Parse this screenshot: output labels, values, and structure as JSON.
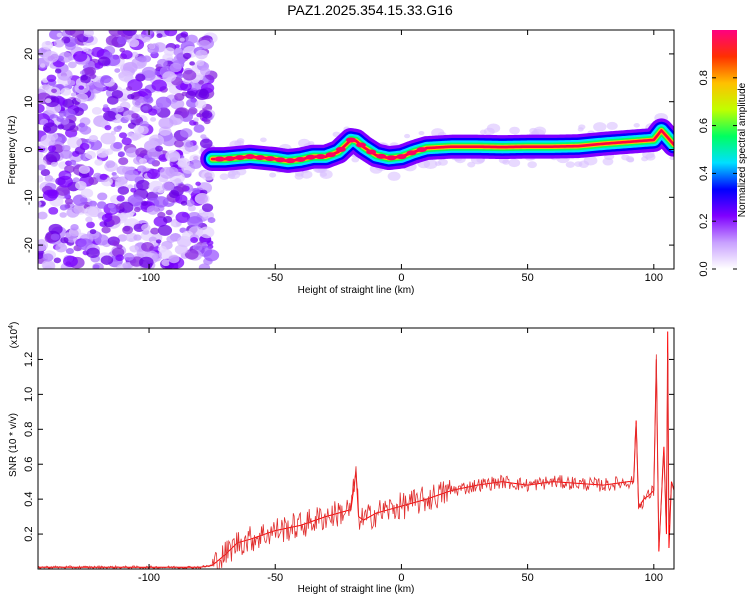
{
  "figure_title": "PAZ1.2025.354.15.33.G16",
  "chart_data": [
    {
      "type": "heatmap",
      "title": "PAZ1.2025.354.15.33.G16",
      "xlabel": "Height of straight line (km)",
      "ylabel": "Frequency (Hz)",
      "xlim": [
        -144,
        108
      ],
      "ylim": [
        -25,
        25
      ],
      "xticks": [
        -100,
        -50,
        0,
        50,
        100
      ],
      "xtick_labels": [
        "-100",
        "-50",
        "0",
        "50",
        "100"
      ],
      "yticks": [
        -20,
        -10,
        0,
        10,
        20
      ],
      "ytick_labels": [
        "-20",
        "-10",
        "0",
        "10",
        "20"
      ],
      "noise_region_x": [
        -144,
        -75
      ],
      "ridge": {
        "x": [
          -75,
          -70,
          -60,
          -50,
          -45,
          -40,
          -35,
          -30,
          -25,
          -20,
          -18,
          -15,
          -10,
          -5,
          0,
          5,
          10,
          20,
          30,
          40,
          50,
          60,
          70,
          80,
          90,
          100,
          103,
          108
        ],
        "freq": [
          -2,
          -2,
          -1.5,
          -2,
          -2.4,
          -2.1,
          -1.5,
          -1.5,
          -0.5,
          2,
          1.8,
          0.5,
          -1.2,
          -1.8,
          -1.5,
          -0.5,
          0.3,
          0.6,
          0.6,
          0.5,
          0.6,
          0.6,
          0.7,
          1.2,
          1.6,
          2,
          4,
          1
        ]
      },
      "colorbar": {
        "label": "Normalized spectral amplitude",
        "range": [
          0,
          1
        ],
        "ticks": [
          0.0,
          0.2,
          0.4,
          0.6,
          0.8
        ],
        "tick_labels": [
          "0.0",
          "0.2",
          "0.4",
          "0.6",
          "0.8"
        ],
        "colors": [
          "#ffffff",
          "#c8a0ff",
          "#8000ff",
          "#0000ff",
          "#00e0ff",
          "#00ff60",
          "#c0ff00",
          "#ffc000",
          "#ff3000",
          "#ff0080"
        ]
      }
    },
    {
      "type": "line",
      "xlabel": "Height of straight line (km)",
      "ylabel": "SNR (10 * v/v)",
      "y_scale_label": "(x10",
      "y_scale_exponent": "4",
      "y_scale_close": ")",
      "xlim": [
        -144,
        108
      ],
      "ylim": [
        0,
        1.38
      ],
      "xticks": [
        -100,
        -50,
        0,
        50,
        100
      ],
      "xtick_labels": [
        "-100",
        "-50",
        "0",
        "50",
        "100"
      ],
      "yticks": [
        0.2,
        0.4,
        0.6,
        0.8,
        1.0,
        1.2
      ],
      "ytick_labels": [
        "0.2",
        "0.4",
        "0.6",
        "0.8",
        "1.0",
        "1.2"
      ],
      "color": "#ff0000",
      "series": [
        {
          "name": "SNR",
          "x": [
            -144,
            -120,
            -100,
            -90,
            -80,
            -75,
            -70,
            -65,
            -60,
            -50,
            -40,
            -30,
            -20,
            -18,
            -17,
            -15,
            -10,
            0,
            10,
            20,
            30,
            40,
            50,
            60,
            70,
            80,
            90,
            92,
            93,
            94,
            96,
            98,
            100,
            101,
            102,
            103,
            104,
            105,
            105.5,
            106,
            107,
            108
          ],
          "y": [
            0.01,
            0.01,
            0.01,
            0.01,
            0.01,
            0.02,
            0.08,
            0.15,
            0.17,
            0.22,
            0.25,
            0.3,
            0.34,
            0.56,
            0.3,
            0.28,
            0.32,
            0.36,
            0.4,
            0.45,
            0.48,
            0.5,
            0.48,
            0.5,
            0.49,
            0.48,
            0.5,
            0.5,
            0.85,
            0.35,
            0.4,
            0.42,
            0.45,
            1.2,
            0.1,
            0.4,
            0.7,
            0.2,
            1.36,
            0.12,
            0.5,
            0.45
          ]
        }
      ]
    }
  ]
}
